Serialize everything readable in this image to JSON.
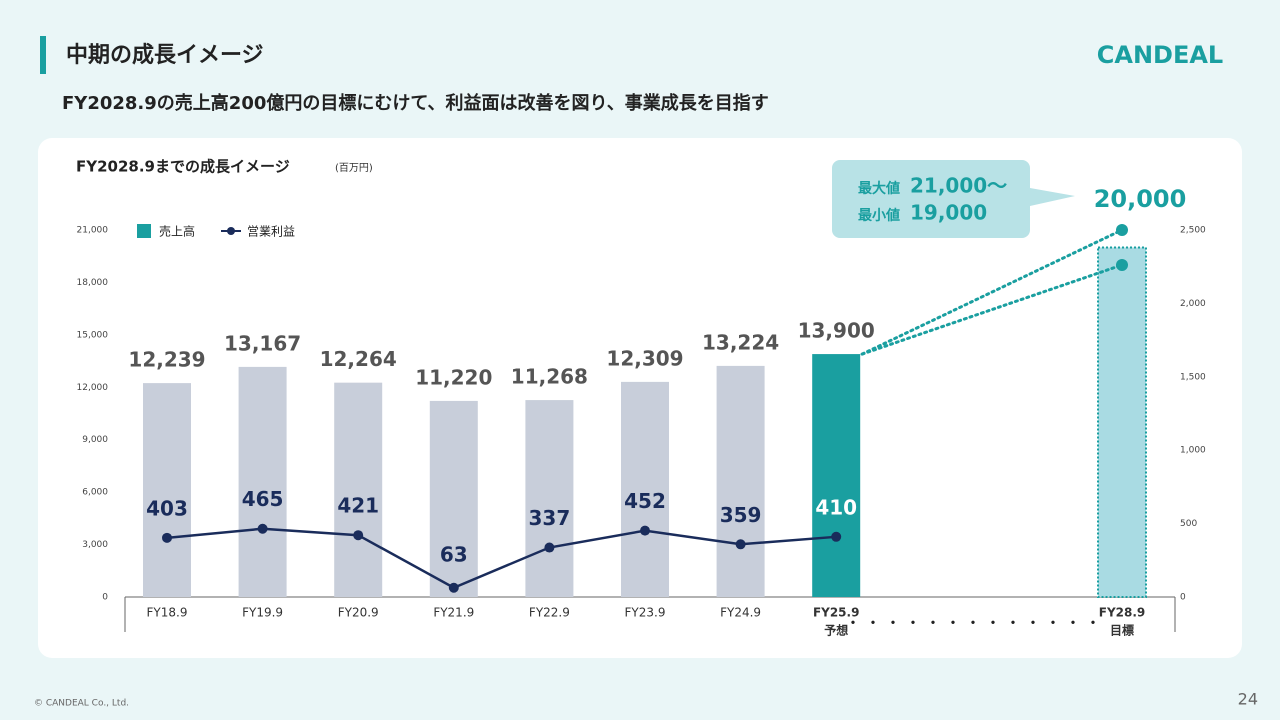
{
  "header": {
    "title": "中期の成長イメージ",
    "subtitle": "FY2028.9の売上高200億円の目標にむけて、利益面は改善を図り、事業成長を目指す",
    "logo": "CANDEAL"
  },
  "footer": {
    "copyright": "© CANDEAL Co., Ltd.",
    "page": "24"
  },
  "chart_data": {
    "type": "bar",
    "title": "FY2028.9までの成長イメージ",
    "unit": "(百万円)",
    "categories": [
      "FY18.9",
      "FY19.9",
      "FY20.9",
      "FY21.9",
      "FY22.9",
      "FY23.9",
      "FY24.9",
      "FY25.9",
      "FY28.9"
    ],
    "category_notes": [
      null,
      null,
      null,
      null,
      null,
      null,
      null,
      "予想",
      "目標"
    ],
    "series": [
      {
        "name": "売上高",
        "type": "bar",
        "color": "#1a9fa0",
        "bar_colors": [
          "#c8ceda",
          "#c8ceda",
          "#c8ceda",
          "#c8ceda",
          "#c8ceda",
          "#c8ceda",
          "#c8ceda",
          "#1a9fa0",
          "#a9dbe3"
        ],
        "values": [
          12239,
          13167,
          12264,
          11220,
          11268,
          12309,
          13224,
          13900,
          20000
        ],
        "value_labels": [
          "12,239",
          "13,167",
          "12,264",
          "11,220",
          "11,268",
          "12,309",
          "13,224",
          "13,900",
          "20,000"
        ]
      },
      {
        "name": "営業利益",
        "type": "line",
        "axis": "y2",
        "color": "#1a2c5b",
        "values": [
          403,
          465,
          421,
          63,
          337,
          452,
          359,
          410,
          null
        ]
      }
    ],
    "target_range": {
      "max_label": "最大値",
      "max_value_label": "21,000〜",
      "min_label": "最小値",
      "min_value_label": "19,000",
      "values": [
        21000,
        19000
      ],
      "color": "#1a9fa0"
    },
    "ylim": [
      0,
      21000
    ],
    "yticks": [
      0,
      {
        "value": 3000,
        "label": "3,000"
      },
      {
        "value": 6000,
        "label": "6,000"
      },
      {
        "value": 9000,
        "label": "9,000"
      },
      {
        "value": 12000,
        "label": "12,000"
      },
      {
        "value": 15000,
        "label": "15,000"
      },
      {
        "value": 18000,
        "label": "18,000"
      },
      {
        "value": 21000,
        "label": "21,000"
      }
    ],
    "y2lim": [
      0,
      2500
    ],
    "y2ticks": [
      0,
      500,
      {
        "value": 1000,
        "label": "1,000"
      },
      {
        "value": 1500,
        "label": "1,500"
      },
      {
        "value": 2000,
        "label": "2,000"
      },
      {
        "value": 2500,
        "label": "2,500"
      }
    ]
  }
}
